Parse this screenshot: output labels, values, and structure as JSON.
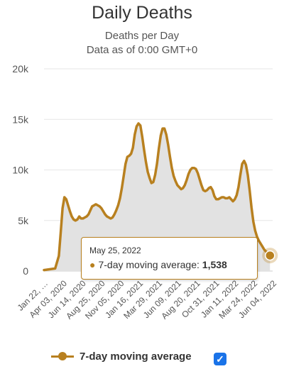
{
  "chart_data": {
    "type": "area",
    "title": "Daily Deaths",
    "subtitle": "Deaths per Day",
    "subtitle2": "Data as of 0:00 GMT+0",
    "xlabel": "",
    "ylabel": "",
    "ylim": [
      0,
      20000
    ],
    "yticks": [
      {
        "value": 0,
        "label": "0"
      },
      {
        "value": 5000,
        "label": "5k"
      },
      {
        "value": 10000,
        "label": "10k"
      },
      {
        "value": 15000,
        "label": "15k"
      },
      {
        "value": 20000,
        "label": "20k"
      }
    ],
    "xticks": [
      "Jan 22, …",
      "Apr 03, 2020",
      "Jun 14, 2020",
      "Aug 25, 2020",
      "Nov 05, 2020",
      "Jan 16, 2021",
      "Mar 29, 2021",
      "Jun 09, 2021",
      "Aug 20, 2021",
      "Oct 31, 2021",
      "Jan 11, 2022",
      "Mar 24, 2022",
      "Jun 04, 2022"
    ],
    "grid": true,
    "legend_position": "bottom",
    "series": [
      {
        "name": "7-day moving average",
        "color": "#b8801f",
        "x": [
          "2020-01-22",
          "2020-02-05",
          "2020-02-19",
          "2020-03-04",
          "2020-03-18",
          "2020-03-25",
          "2020-04-01",
          "2020-04-08",
          "2020-04-15",
          "2020-04-22",
          "2020-04-29",
          "2020-05-06",
          "2020-05-13",
          "2020-05-20",
          "2020-05-27",
          "2020-06-03",
          "2020-06-10",
          "2020-06-17",
          "2020-06-24",
          "2020-07-01",
          "2020-07-08",
          "2020-07-15",
          "2020-07-22",
          "2020-07-29",
          "2020-08-05",
          "2020-08-12",
          "2020-08-19",
          "2020-08-26",
          "2020-09-02",
          "2020-09-09",
          "2020-09-16",
          "2020-09-23",
          "2020-09-30",
          "2020-10-07",
          "2020-10-14",
          "2020-10-21",
          "2020-10-28",
          "2020-11-04",
          "2020-11-11",
          "2020-11-18",
          "2020-11-25",
          "2020-12-02",
          "2020-12-09",
          "2020-12-16",
          "2020-12-23",
          "2020-12-30",
          "2021-01-06",
          "2021-01-13",
          "2021-01-20",
          "2021-01-27",
          "2021-02-03",
          "2021-02-10",
          "2021-02-17",
          "2021-02-24",
          "2021-03-03",
          "2021-03-10",
          "2021-03-17",
          "2021-03-24",
          "2021-03-31",
          "2021-04-07",
          "2021-04-14",
          "2021-04-21",
          "2021-04-28",
          "2021-05-05",
          "2021-05-12",
          "2021-05-19",
          "2021-05-26",
          "2021-06-02",
          "2021-06-09",
          "2021-06-16",
          "2021-06-23",
          "2021-06-30",
          "2021-07-07",
          "2021-07-14",
          "2021-07-21",
          "2021-07-28",
          "2021-08-04",
          "2021-08-11",
          "2021-08-18",
          "2021-08-25",
          "2021-09-01",
          "2021-09-08",
          "2021-09-15",
          "2021-09-22",
          "2021-09-29",
          "2021-10-06",
          "2021-10-13",
          "2021-10-20",
          "2021-10-27",
          "2021-11-03",
          "2021-11-10",
          "2021-11-17",
          "2021-11-24",
          "2021-12-01",
          "2021-12-08",
          "2021-12-15",
          "2021-12-22",
          "2021-12-29",
          "2022-01-05",
          "2022-01-12",
          "2022-01-19",
          "2022-01-26",
          "2022-02-02",
          "2022-02-09",
          "2022-02-16",
          "2022-02-23",
          "2022-03-02",
          "2022-03-09",
          "2022-03-16",
          "2022-03-23",
          "2022-03-30",
          "2022-04-06",
          "2022-04-13",
          "2022-04-20",
          "2022-04-27",
          "2022-05-04",
          "2022-05-11",
          "2022-05-18",
          "2022-05-25"
        ],
        "values": [
          100,
          150,
          200,
          250,
          1500,
          3800,
          6200,
          7300,
          7100,
          6500,
          5900,
          5400,
          5100,
          5000,
          5100,
          5400,
          5200,
          5200,
          5300,
          5400,
          5600,
          6000,
          6400,
          6500,
          6600,
          6500,
          6400,
          6200,
          5900,
          5600,
          5400,
          5300,
          5200,
          5300,
          5600,
          6000,
          6500,
          7200,
          8200,
          9400,
          10600,
          11300,
          11400,
          11600,
          12200,
          13500,
          14300,
          14600,
          14400,
          13300,
          12000,
          10800,
          9800,
          9200,
          8700,
          8800,
          9500,
          10600,
          12100,
          13400,
          14100,
          14100,
          13500,
          12500,
          11300,
          10200,
          9400,
          8900,
          8500,
          8300,
          8100,
          8200,
          8500,
          9000,
          9600,
          10000,
          10200,
          10200,
          10100,
          9700,
          9100,
          8500,
          8000,
          7900,
          8000,
          8200,
          8300,
          8000,
          7400,
          7100,
          7100,
          7200,
          7300,
          7300,
          7200,
          7200,
          7300,
          7100,
          6900,
          7100,
          7500,
          8300,
          9500,
          10600,
          10900,
          10500,
          9500,
          8000,
          6300,
          4900,
          4000,
          3400,
          3000,
          2700,
          2400,
          2100,
          1900,
          1700,
          1538
        ]
      }
    ],
    "tooltip": {
      "date": "May 25, 2022",
      "series": "7-day moving average:",
      "value": "1,538"
    }
  },
  "legend": {
    "label": "7-day moving average",
    "check": "✓"
  }
}
